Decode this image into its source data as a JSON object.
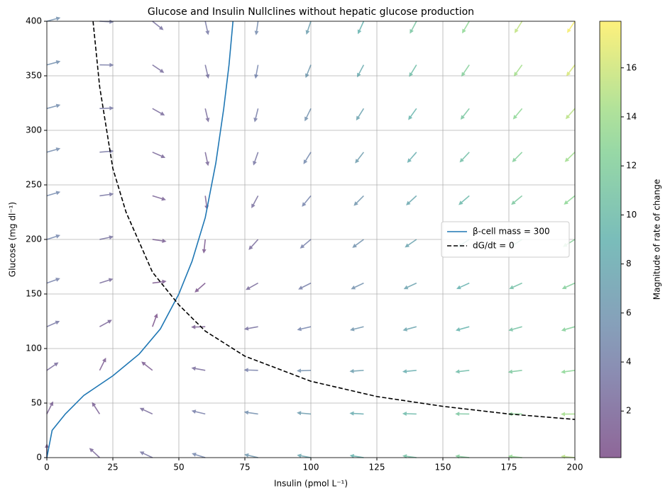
{
  "chart_data": {
    "type": "quiver",
    "title": "Glucose and Insulin Nullclines without hepatic glucose production",
    "xlabel": "Insulin (pmol L⁻¹)",
    "ylabel": "Glucose (mg dl⁻¹)",
    "xlim": [
      0,
      200
    ],
    "ylim": [
      0,
      400
    ],
    "xticks": [
      0,
      25,
      50,
      75,
      100,
      125,
      150,
      175,
      200
    ],
    "yticks": [
      0,
      50,
      100,
      150,
      200,
      250,
      300,
      350,
      400
    ],
    "grid": true,
    "legend": "center right",
    "quiver": {
      "x": [
        0,
        20,
        40,
        60,
        80,
        100,
        120,
        140,
        160,
        180,
        200
      ],
      "y": [
        0,
        40,
        80,
        120,
        160,
        200,
        240,
        280,
        320,
        360,
        400
      ],
      "u": [
        [
          0,
          -1.5,
          -3,
          -4.5,
          -6,
          -7.5,
          -9,
          -10.5,
          -12,
          -13.5,
          -15
        ],
        [
          0.7,
          -0.8,
          -2.3,
          -3.8,
          -5.3,
          -6.8,
          -8.3,
          -9.8,
          -11.3,
          -12.8,
          -14.3
        ],
        [
          2.04,
          0.54,
          -0.96,
          -2.46,
          -3.96,
          -5.46,
          -6.96,
          -8.46,
          -9.96,
          -11.46,
          -12.96
        ],
        [
          3.16,
          1.66,
          0.16,
          -1.34,
          -2.84,
          -4.34,
          -5.84,
          -7.34,
          -8.84,
          -10.34,
          -11.84
        ],
        [
          3.91,
          2.41,
          0.91,
          -0.59,
          -2.09,
          -3.59,
          -5.09,
          -6.59,
          -8.09,
          -9.59,
          -11.09
        ],
        [
          4.39,
          2.89,
          1.39,
          -0.11,
          -1.61,
          -3.11,
          -4.61,
          -6.11,
          -7.61,
          -9.11,
          -10.61
        ],
        [
          4.7,
          3.2,
          1.7,
          0.2,
          -1.3,
          -2.8,
          -4.3,
          -5.8,
          -7.3,
          -8.8,
          -10.3
        ],
        [
          4.92,
          3.42,
          1.92,
          0.42,
          -1.08,
          -2.58,
          -4.08,
          -5.58,
          -7.08,
          -8.58,
          -10.08
        ],
        [
          5.07,
          3.57,
          2.07,
          0.57,
          -0.93,
          -2.43,
          -3.93,
          -5.43,
          -6.93,
          -8.43,
          -9.93
        ],
        [
          5.18,
          3.68,
          2.18,
          0.68,
          -0.82,
          -2.32,
          -3.82,
          -5.32,
          -6.82,
          -8.32,
          -9.82
        ],
        [
          5.26,
          3.76,
          2.26,
          0.76,
          -0.74,
          -2.24,
          -3.74,
          -5.24,
          -6.74,
          -8.24,
          -9.74
        ]
      ],
      "v": [
        [
          1.4,
          1.4,
          1.4,
          1.4,
          1.4,
          1.4,
          1.4,
          1.4,
          1.4,
          1.4,
          1.4
        ],
        [
          1.4,
          1.24,
          1.08,
          0.92,
          0.76,
          0.6,
          0.44,
          0.28,
          0.12,
          -0.04,
          -0.2
        ],
        [
          1.4,
          1.08,
          0.76,
          0.44,
          0.12,
          -0.2,
          -0.52,
          -0.84,
          -1.16,
          -1.48,
          -1.8
        ],
        [
          1.4,
          0.92,
          0.44,
          -0.04,
          -0.52,
          -1,
          -1.48,
          -1.96,
          -2.44,
          -2.92,
          -3.4
        ],
        [
          1.4,
          0.76,
          0.12,
          -0.52,
          -1.16,
          -1.8,
          -2.44,
          -3.08,
          -3.72,
          -4.36,
          -5
        ],
        [
          1.4,
          0.6,
          -0.2,
          -1,
          -1.8,
          -2.6,
          -3.4,
          -4.2,
          -5,
          -5.8,
          -6.6
        ],
        [
          1.4,
          0.44,
          -0.52,
          -1.48,
          -2.44,
          -3.4,
          -4.36,
          -5.32,
          -6.28,
          -7.24,
          -8.2
        ],
        [
          1.4,
          0.28,
          -0.84,
          -1.96,
          -3.08,
          -4.2,
          -5.32,
          -6.44,
          -7.56,
          -8.68,
          -9.8
        ],
        [
          1.4,
          0.12,
          -1.16,
          -2.44,
          -3.72,
          -5,
          -6.28,
          -7.56,
          -8.84,
          -10.12,
          -11.4
        ],
        [
          1.4,
          -0.04,
          -1.48,
          -2.92,
          -4.36,
          -5.8,
          -7.24,
          -8.68,
          -10.12,
          -11.56,
          -13
        ],
        [
          1.4,
          -0.2,
          -1.8,
          -3.4,
          -5,
          -6.6,
          -8.2,
          -9.8,
          -11.4,
          -13,
          -14.6
        ]
      ]
    },
    "colorbar": {
      "label": "Magnitude of rate of change",
      "clim": [
        0.1,
        17.9
      ],
      "ticks": [
        2,
        4,
        6,
        8,
        10,
        12,
        14,
        16
      ]
    },
    "series": [
      {
        "name": "β-cell mass = 300",
        "color": "#1f77b4",
        "linestyle": "solid",
        "x": [
          0,
          2,
          7,
          14,
          25,
          35,
          43,
          50,
          55,
          60,
          64,
          67,
          69,
          70.5
        ],
        "y": [
          0,
          25,
          40,
          57,
          75,
          95,
          118,
          150,
          180,
          220,
          270,
          320,
          360,
          400
        ]
      },
      {
        "name": "dG/dt = 0",
        "color": "#000000",
        "linestyle": "dashed",
        "x": [
          17.5,
          20,
          25,
          30,
          40,
          50,
          60,
          75,
          100,
          125,
          150,
          175,
          200
        ],
        "y": [
          400,
          340,
          265,
          225,
          170,
          140,
          116,
          93,
          70,
          56,
          47,
          40,
          35
        ]
      }
    ]
  }
}
